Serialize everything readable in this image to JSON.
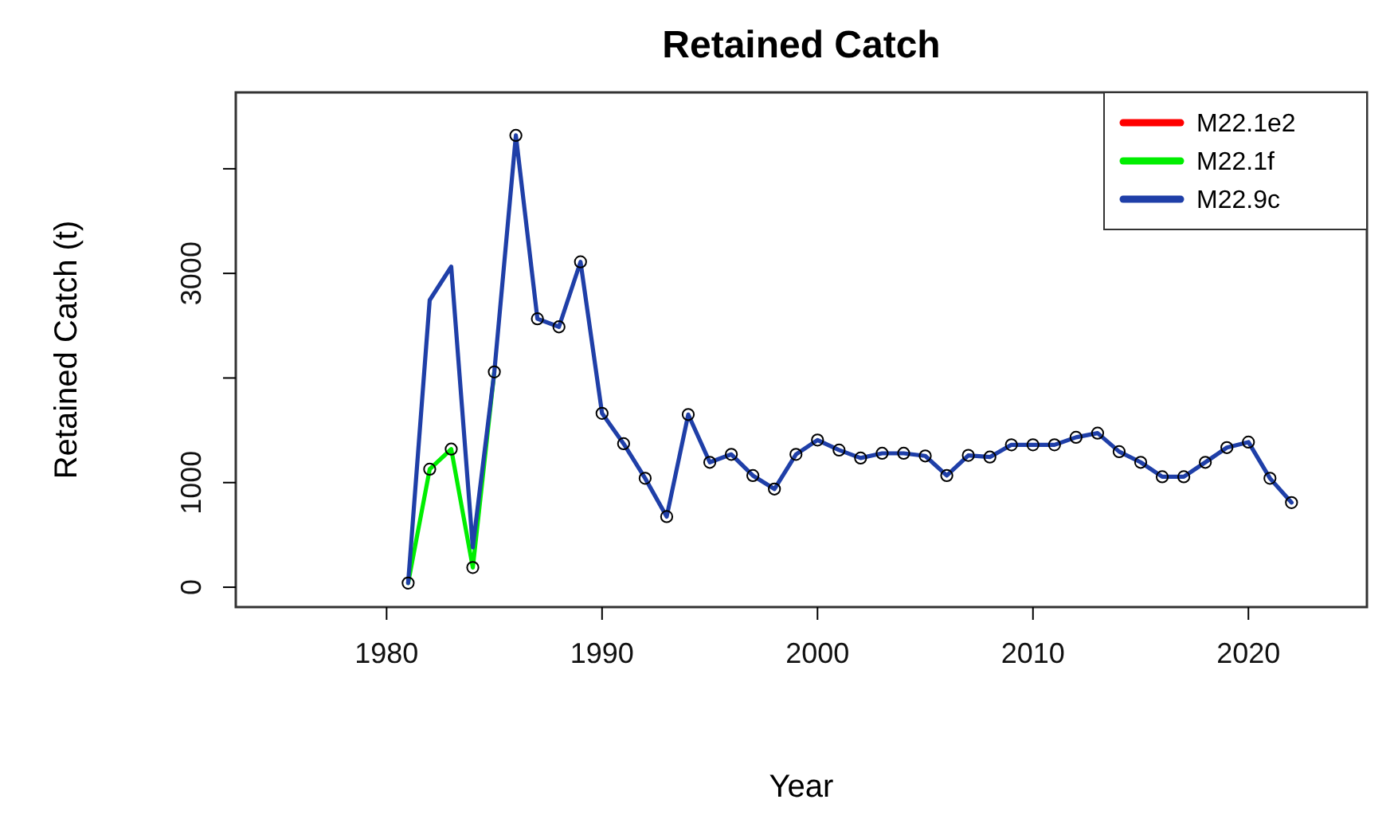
{
  "chart_data": {
    "type": "line",
    "title": "Retained Catch",
    "xlabel": "Year",
    "ylabel": "Retained Catch (t)",
    "x": [
      1981,
      1982,
      1983,
      1984,
      1985,
      1986,
      1987,
      1988,
      1989,
      1990,
      1991,
      1992,
      1993,
      1994,
      1995,
      1996,
      1997,
      1998,
      1999,
      2000,
      2001,
      2002,
      2003,
      2004,
      2005,
      2006,
      2007,
      2008,
      2009,
      2010,
      2011,
      2012,
      2013,
      2014,
      2015,
      2016,
      2017,
      2018,
      2019,
      2020,
      2021,
      2022
    ],
    "xlim": [
      1973,
      2025.5
    ],
    "xticks": [
      1980,
      1990,
      2000,
      2010,
      2020
    ],
    "ylim": [
      -190,
      4730
    ],
    "yticks": [
      0,
      1000,
      {
        "value": 2000,
        "label": null
      },
      3000,
      {
        "value": 4000,
        "label": null
      }
    ],
    "legend": "top right",
    "grid": false,
    "series": [
      {
        "name": "M22.1e2",
        "color": "#ff0000",
        "values": [
          null,
          null,
          null,
          null,
          null,
          null,
          null,
          null,
          null,
          null,
          null,
          null,
          null,
          null,
          null,
          null,
          null,
          null,
          null,
          null,
          null,
          null,
          null,
          null,
          null,
          null,
          null,
          null,
          null,
          null,
          null,
          null,
          null,
          null,
          null,
          null,
          null,
          null,
          null,
          null,
          null,
          null
        ]
      },
      {
        "name": "M22.1f",
        "color": "#00ee00",
        "values": [
          40,
          1128,
          1320,
          188,
          2058,
          null,
          null,
          null,
          null,
          null,
          null,
          null,
          null,
          null,
          null,
          null,
          null,
          null,
          null,
          null,
          null,
          null,
          null,
          null,
          null,
          null,
          null,
          null,
          null,
          null,
          null,
          null,
          null,
          null,
          null,
          null,
          null,
          null,
          null,
          null,
          null,
          null
        ]
      },
      {
        "name": "M22.9c",
        "color": "#1f3fa8",
        "values": [
          40,
          2744,
          3064,
          380,
          2058,
          4319,
          2566,
          2489,
          3110,
          1662,
          1372,
          1041,
          675,
          1651,
          1194,
          1270,
          1067,
          939,
          1270,
          1407,
          1311,
          1235,
          1280,
          1280,
          1255,
          1067,
          1260,
          1244,
          1361,
          1361,
          1361,
          1433,
          1473,
          1296,
          1194,
          1056,
          1056,
          1194,
          1335,
          1387,
          1041,
          809
        ]
      },
      {
        "type": "scatter",
        "marker": "circle",
        "color": "#000000",
        "values": [
          40,
          1128,
          1320,
          188,
          2058,
          4319,
          2566,
          2489,
          3110,
          1662,
          1372,
          1041,
          675,
          1651,
          1194,
          1270,
          1067,
          939,
          1270,
          1407,
          1311,
          1235,
          1280,
          1280,
          1255,
          1067,
          1260,
          1244,
          1361,
          1361,
          1361,
          1433,
          1473,
          1296,
          1194,
          1056,
          1056,
          1194,
          1335,
          1387,
          1041,
          809
        ]
      }
    ]
  }
}
